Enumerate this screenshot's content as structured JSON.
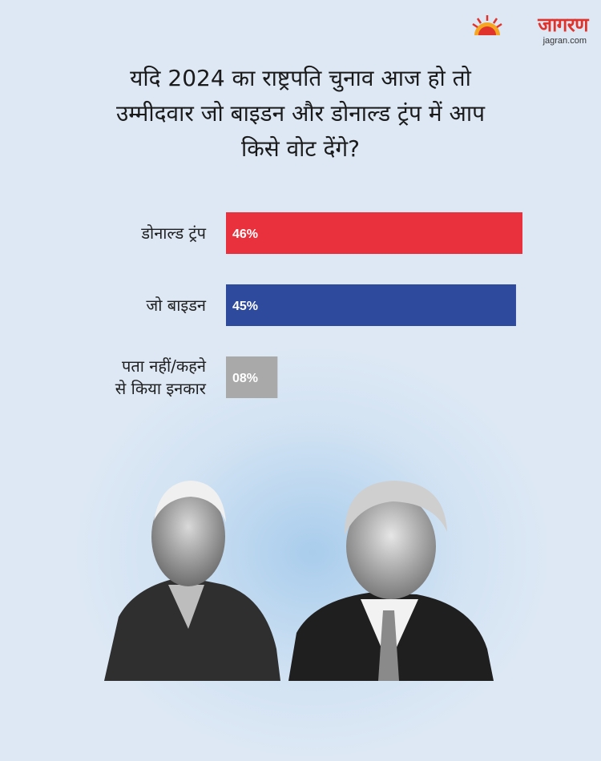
{
  "brand": {
    "name": "जागरण",
    "site": "jagran.com"
  },
  "title_lines": [
    "यदि 2024 का राष्ट्रपति चुनाव आज हो तो",
    "उम्मीदवार जो बाइडन और डोनाल्ड ट्रंप में आप",
    "किसे वोट देंगे?"
  ],
  "chart_data": {
    "type": "bar",
    "orientation": "horizontal",
    "categories": [
      "डोनाल्ड ट्रंप",
      "जो बाइडन",
      "पता नहीं/कहने से किया इनकार"
    ],
    "category_lines": [
      [
        "डोनाल्ड ट्रंप"
      ],
      [
        "जो बाइडन"
      ],
      [
        "पता नहीं/कहने",
        "से किया इनकार"
      ]
    ],
    "values": [
      46,
      45,
      8
    ],
    "value_labels": [
      "46%",
      "45%",
      "08%"
    ],
    "colors": [
      "#e8313d",
      "#2e4a9c",
      "#a9a9a9"
    ],
    "title": "यदि 2024 का राष्ट्रपति चुनाव आज हो तो उम्मीदवार जो बाइडन और डोनाल्ड ट्रंप में आप किसे वोट देंगे?",
    "xlabel": "",
    "ylabel": "",
    "grid": false,
    "legend": "none"
  },
  "colors": {
    "background": "#dde8f4",
    "brand_red": "#e0332c"
  },
  "icons": {
    "brand_logo": "sun-logo-icon"
  },
  "photo": {
    "description": "portraits"
  }
}
